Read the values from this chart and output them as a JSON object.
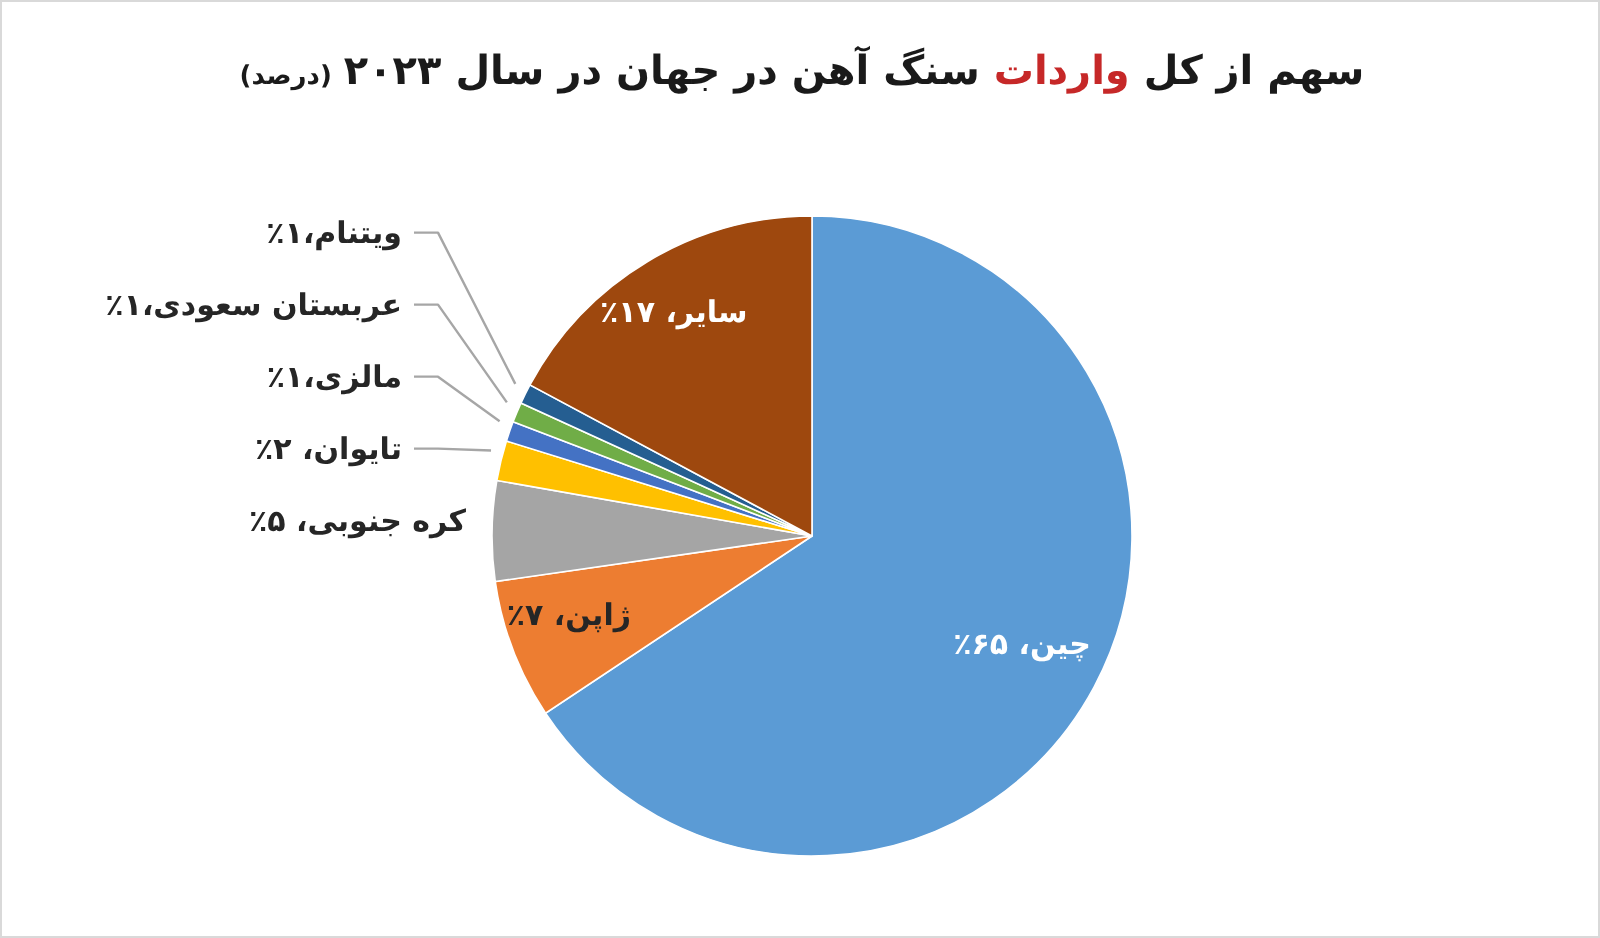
{
  "chart_data": {
    "type": "pie",
    "title": "سهم از کل واردات سنگ آهن در جهان در سال ۲۰۲۳",
    "subtitle": "(درصد)",
    "categories": [
      "چین",
      "ژاپن",
      "کره جنوبی",
      "تایوان",
      "مالزی",
      "عربستان سعودی",
      "ویتنام",
      "سایر"
    ],
    "values": [
      65,
      7,
      5,
      2,
      1,
      1,
      1,
      17
    ],
    "colors": [
      "#5b9bd5",
      "#ed7d31",
      "#a5a5a5",
      "#ffc000",
      "#4472c4",
      "#70ad47",
      "#255e91",
      "#9e480e"
    ],
    "value_labels": [
      "، ۶۵٪",
      "، ۷٪",
      "، ۵٪",
      "، ۲٪",
      "،۱٪",
      "،۱٪",
      "،۱٪",
      "، ۱۷٪"
    ]
  }
}
